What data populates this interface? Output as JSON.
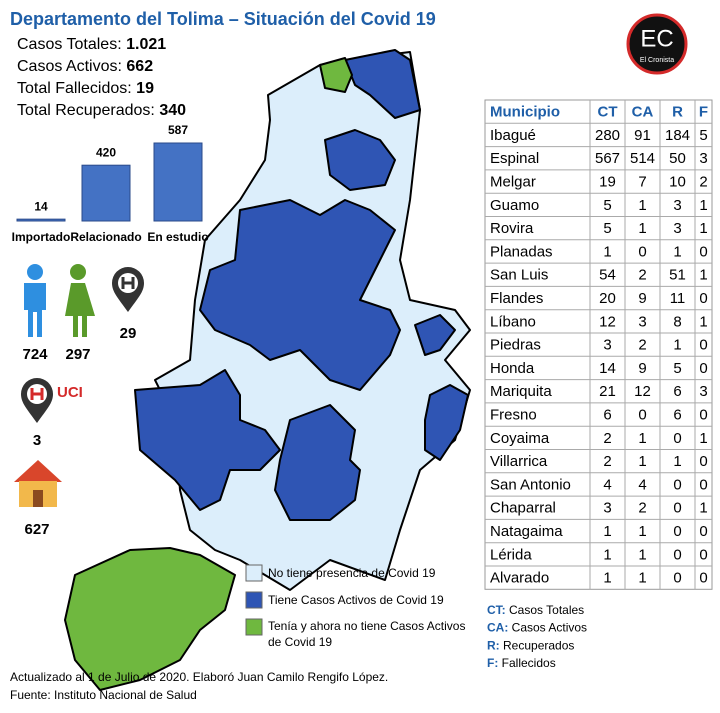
{
  "header": {
    "title": "Departamento del Tolima – Situación del Covid 19"
  },
  "stats": [
    {
      "label": "Casos Totales:",
      "value": "1.021"
    },
    {
      "label": "Casos Activos:",
      "value": "662"
    },
    {
      "label": "Total Fallecidos:",
      "value": "19"
    },
    {
      "label": "Total Recuperados:",
      "value": "340"
    }
  ],
  "chart_data": {
    "type": "bar",
    "categories": [
      "Importado",
      "Relacionado",
      "En estudio"
    ],
    "values": [
      14,
      420,
      587
    ],
    "color": "#4472c4"
  },
  "icons": {
    "men": "724",
    "women": "297",
    "hospital": "29",
    "uci_label": "UCI",
    "uci": "3",
    "home": "627"
  },
  "logo": {
    "text": "EC",
    "subtitle": "El Cronista"
  },
  "legend": [
    "No tiene presencia de Covid 19",
    "Tiene Casos Activos de Covid 19",
    "Tenía y ahora no tiene Casos Activos",
    "de Covid 19"
  ],
  "table": {
    "columns": [
      "Municipio",
      "CT",
      "CA",
      "R",
      "F"
    ],
    "rows": [
      [
        "Ibagué",
        "280",
        "91",
        "184",
        "5"
      ],
      [
        "Espinal",
        "567",
        "514",
        "50",
        "3"
      ],
      [
        "Melgar",
        "19",
        "7",
        "10",
        "2"
      ],
      [
        "Guamo",
        "5",
        "1",
        "3",
        "1"
      ],
      [
        "Rovira",
        "5",
        "1",
        "3",
        "1"
      ],
      [
        "Planadas",
        "1",
        "0",
        "1",
        "0"
      ],
      [
        "San Luis",
        "54",
        "2",
        "51",
        "1"
      ],
      [
        "Flandes",
        "20",
        "9",
        "11",
        "0"
      ],
      [
        "Líbano",
        "12",
        "3",
        "8",
        "1"
      ],
      [
        "Piedras",
        "3",
        "2",
        "1",
        "0"
      ],
      [
        "Honda",
        "14",
        "9",
        "5",
        "0"
      ],
      [
        "Mariquita",
        "21",
        "12",
        "6",
        "3"
      ],
      [
        "Fresno",
        "6",
        "0",
        "6",
        "0"
      ],
      [
        "Coyaima",
        "2",
        "1",
        "0",
        "1"
      ],
      [
        "Villarrica",
        "2",
        "1",
        "1",
        "0"
      ],
      [
        "San Antonio",
        "4",
        "4",
        "0",
        "0"
      ],
      [
        "Chaparral",
        "3",
        "2",
        "0",
        "1"
      ],
      [
        "Natagaima",
        "1",
        "1",
        "0",
        "0"
      ],
      [
        "Lérida",
        "1",
        "1",
        "0",
        "0"
      ],
      [
        "Alvarado",
        "1",
        "1",
        "0",
        "0"
      ]
    ]
  },
  "abbreviations": [
    {
      "key": "CT:",
      "text": "Casos Totales"
    },
    {
      "key": "CA:",
      "text": "Casos Activos"
    },
    {
      "key": "R:",
      "text": "Recuperados"
    },
    {
      "key": "F:",
      "text": "Fallecidos"
    }
  ],
  "footer": [
    "Actualizado al 1 de Julio de 2020. Elaboró Juan Camilo Rengifo López.",
    "Fuente: Instituto Nacional de Salud"
  ]
}
